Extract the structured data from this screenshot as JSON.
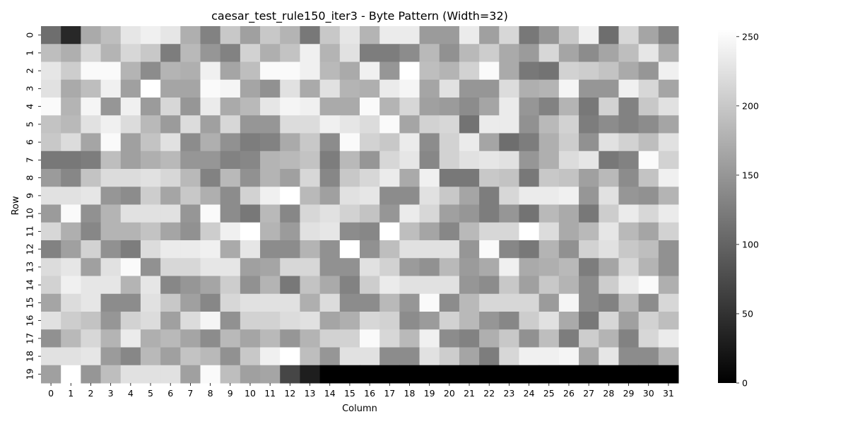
{
  "chart_data": {
    "type": "heatmap",
    "title": "caesar_test_rule150_iter3 - Byte Pattern (Width=32)",
    "xlabel": "Column",
    "ylabel": "Row",
    "x": [
      "0",
      "1",
      "2",
      "3",
      "4",
      "5",
      "6",
      "7",
      "8",
      "9",
      "10",
      "11",
      "12",
      "13",
      "14",
      "15",
      "16",
      "17",
      "18",
      "19",
      "20",
      "21",
      "22",
      "23",
      "24",
      "25",
      "26",
      "27",
      "28",
      "29",
      "30",
      "31"
    ],
    "y": [
      "0",
      "1",
      "2",
      "3",
      "4",
      "5",
      "6",
      "7",
      "8",
      "9",
      "10",
      "11",
      "12",
      "13",
      "14",
      "15",
      "16",
      "17",
      "18",
      "19"
    ],
    "colormap": "grayscale",
    "color_low": "#000000",
    "color_high": "#ffffff",
    "vmin": 0,
    "vmax": 255,
    "colorbar_ticks": [
      "0",
      "50",
      "100",
      "150",
      "200",
      "250"
    ],
    "colorbar_tick_values": [
      0,
      50,
      100,
      150,
      200,
      250
    ],
    "values": [
      [
        110,
        40,
        170,
        190,
        230,
        240,
        230,
        175,
        130,
        200,
        160,
        200,
        180,
        120,
        200,
        230,
        180,
        235,
        235,
        155,
        155,
        235,
        160,
        215,
        120,
        150,
        200,
        240,
        110,
        215,
        165,
        130
      ],
      [
        190,
        175,
        215,
        180,
        215,
        200,
        125,
        185,
        150,
        130,
        210,
        175,
        195,
        240,
        180,
        225,
        125,
        125,
        140,
        185,
        145,
        185,
        205,
        170,
        155,
        215,
        165,
        140,
        165,
        190,
        230,
        175
      ],
      [
        230,
        205,
        250,
        250,
        180,
        140,
        180,
        175,
        240,
        165,
        190,
        250,
        250,
        240,
        185,
        170,
        240,
        150,
        255,
        190,
        180,
        210,
        250,
        170,
        120,
        115,
        210,
        205,
        195,
        170,
        150,
        240
      ],
      [
        225,
        170,
        190,
        240,
        160,
        255,
        165,
        165,
        250,
        245,
        165,
        145,
        225,
        170,
        225,
        180,
        175,
        235,
        245,
        165,
        225,
        150,
        150,
        220,
        175,
        180,
        245,
        150,
        150,
        240,
        215,
        165
      ],
      [
        250,
        180,
        245,
        150,
        240,
        155,
        215,
        150,
        235,
        170,
        185,
        230,
        245,
        240,
        170,
        170,
        250,
        180,
        215,
        160,
        155,
        140,
        165,
        235,
        150,
        130,
        180,
        120,
        210,
        130,
        200,
        225
      ],
      [
        195,
        185,
        225,
        240,
        220,
        185,
        155,
        220,
        160,
        215,
        150,
        150,
        220,
        220,
        240,
        230,
        220,
        250,
        165,
        210,
        215,
        115,
        235,
        235,
        145,
        185,
        210,
        125,
        140,
        130,
        140,
        165
      ],
      [
        200,
        220,
        165,
        250,
        160,
        195,
        225,
        140,
        175,
        145,
        125,
        130,
        170,
        200,
        140,
        250,
        210,
        200,
        235,
        140,
        210,
        235,
        165,
        110,
        125,
        175,
        205,
        145,
        225,
        210,
        190,
        225
      ],
      [
        120,
        120,
        125,
        190,
        160,
        175,
        185,
        150,
        150,
        130,
        135,
        180,
        185,
        195,
        125,
        185,
        150,
        215,
        230,
        135,
        210,
        225,
        230,
        225,
        150,
        175,
        220,
        230,
        120,
        130,
        250,
        210
      ],
      [
        155,
        135,
        195,
        220,
        220,
        225,
        215,
        185,
        130,
        185,
        145,
        180,
        160,
        215,
        135,
        200,
        215,
        235,
        170,
        240,
        120,
        120,
        200,
        195,
        120,
        200,
        195,
        160,
        185,
        140,
        195,
        240
      ],
      [
        225,
        225,
        230,
        150,
        140,
        205,
        165,
        200,
        175,
        140,
        210,
        240,
        255,
        185,
        160,
        225,
        230,
        140,
        140,
        225,
        200,
        165,
        125,
        215,
        235,
        235,
        240,
        150,
        225,
        150,
        145,
        180
      ],
      [
        155,
        250,
        145,
        180,
        225,
        225,
        225,
        150,
        250,
        140,
        120,
        185,
        135,
        215,
        225,
        210,
        195,
        150,
        235,
        215,
        160,
        150,
        125,
        150,
        115,
        185,
        170,
        120,
        205,
        235,
        215,
        235
      ],
      [
        215,
        175,
        135,
        180,
        180,
        195,
        165,
        145,
        205,
        240,
        255,
        180,
        155,
        225,
        230,
        140,
        135,
        255,
        190,
        165,
        135,
        185,
        215,
        215,
        255,
        220,
        170,
        185,
        230,
        185,
        165,
        210
      ],
      [
        130,
        160,
        210,
        145,
        125,
        220,
        235,
        235,
        240,
        170,
        230,
        140,
        140,
        180,
        145,
        255,
        145,
        190,
        225,
        225,
        225,
        150,
        250,
        135,
        120,
        180,
        145,
        210,
        225,
        200,
        190,
        145
      ],
      [
        220,
        230,
        160,
        225,
        250,
        145,
        215,
        215,
        230,
        230,
        160,
        165,
        215,
        215,
        145,
        145,
        225,
        210,
        155,
        145,
        185,
        155,
        170,
        240,
        170,
        175,
        185,
        125,
        165,
        215,
        180,
        145
      ],
      [
        210,
        240,
        230,
        230,
        180,
        230,
        135,
        150,
        165,
        205,
        145,
        180,
        120,
        195,
        170,
        130,
        205,
        235,
        225,
        225,
        225,
        150,
        140,
        200,
        160,
        200,
        180,
        140,
        205,
        235,
        250,
        175
      ],
      [
        165,
        220,
        230,
        140,
        140,
        225,
        200,
        160,
        135,
        215,
        225,
        225,
        225,
        175,
        220,
        140,
        140,
        185,
        150,
        250,
        140,
        185,
        215,
        215,
        215,
        155,
        245,
        140,
        130,
        185,
        140,
        215
      ],
      [
        225,
        205,
        195,
        150,
        210,
        220,
        160,
        220,
        245,
        145,
        210,
        210,
        220,
        225,
        165,
        175,
        215,
        210,
        140,
        155,
        210,
        185,
        150,
        135,
        205,
        225,
        170,
        120,
        215,
        160,
        210,
        190
      ],
      [
        145,
        185,
        215,
        180,
        235,
        175,
        185,
        165,
        140,
        185,
        165,
        185,
        150,
        180,
        210,
        210,
        250,
        215,
        185,
        240,
        140,
        130,
        175,
        200,
        145,
        190,
        125,
        205,
        180,
        130,
        215,
        235
      ],
      [
        225,
        225,
        230,
        155,
        135,
        185,
        160,
        195,
        185,
        145,
        200,
        240,
        255,
        190,
        150,
        225,
        225,
        140,
        140,
        225,
        205,
        165,
        125,
        215,
        240,
        240,
        245,
        165,
        230,
        140,
        140,
        180
      ],
      [
        160,
        255,
        150,
        190,
        225,
        225,
        225,
        160,
        250,
        190,
        160,
        165,
        70,
        30,
        0,
        0,
        0,
        0,
        0,
        0,
        0,
        0,
        0,
        0,
        0,
        0,
        0,
        0,
        0,
        0,
        0,
        0
      ]
    ]
  }
}
